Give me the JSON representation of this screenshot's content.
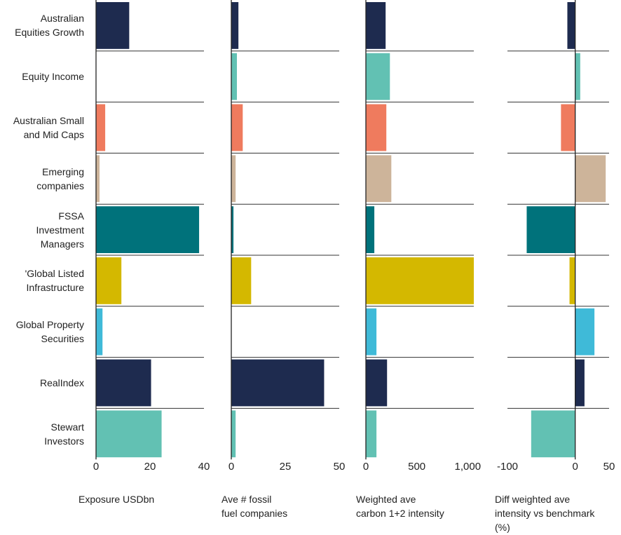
{
  "chart_data": [
    {
      "type": "bar",
      "categories": [
        "Australian\nEquities Growth",
        "Equity Income",
        "Australian Small\nand Mid Caps",
        "Emerging\ncompanies",
        "FSSA\nInvestment\nManagers",
        "'Global Listed\nInfrastructure",
        "Global Property\nSecurities",
        "RealIndex",
        "Stewart\nInvestors"
      ],
      "colors": [
        "#1e2b4f",
        "#62c1b3",
        "#ef7b5e",
        "#cdb49a",
        "#00727b",
        "#d4b800",
        "#3fbad8",
        "#1e2b4f",
        "#62c1b3"
      ],
      "xlabel": "Exposure USDbn",
      "xlim": [
        0,
        40
      ],
      "xticks": [
        0,
        20,
        40
      ],
      "values": [
        12.3,
        0,
        3.4,
        1.3,
        38.2,
        9.4,
        2.4,
        20.4,
        24.3
      ]
    },
    {
      "type": "bar",
      "colors": [
        "#1e2b4f",
        "#62c1b3",
        "#ef7b5e",
        "#cdb49a",
        "#00727b",
        "#d4b800",
        "#3fbad8",
        "#1e2b4f",
        "#62c1b3"
      ],
      "xlabel": "Ave # fossil\nfuel companies",
      "xlim": [
        0,
        50
      ],
      "xticks": [
        0,
        25,
        50
      ],
      "values": [
        3.3,
        2.6,
        5.3,
        2,
        1,
        9.2,
        0,
        43,
        2
      ]
    },
    {
      "type": "bar",
      "colors": [
        "#1e2b4f",
        "#62c1b3",
        "#ef7b5e",
        "#cdb49a",
        "#00727b",
        "#d4b800",
        "#3fbad8",
        "#1e2b4f",
        "#62c1b3"
      ],
      "xlabel": "Weighted ave\ncarbon 1+2 intensity",
      "xlim": [
        0,
        1060
      ],
      "xticks": [
        0,
        500,
        {
          "value": 1000,
          "label": "1,000"
        }
      ],
      "values": [
        194,
        236,
        201,
        250,
        83,
        1060,
        104,
        208,
        104
      ]
    },
    {
      "type": "bar",
      "colors": [
        "#1e2b4f",
        "#62c1b3",
        "#ef7b5e",
        "#cdb49a",
        "#00727b",
        "#d4b800",
        "#3fbad8",
        "#1e2b4f",
        "#62c1b3"
      ],
      "xlabel": "Diff weighted ave\nintensity vs benchmark\n(%)",
      "xlim": [
        -100,
        50
      ],
      "xticks": [
        -100,
        0,
        50
      ],
      "values": [
        -11.6,
        7.4,
        -21,
        45,
        -71.6,
        -8.4,
        28.4,
        13.7,
        -65
      ]
    }
  ]
}
